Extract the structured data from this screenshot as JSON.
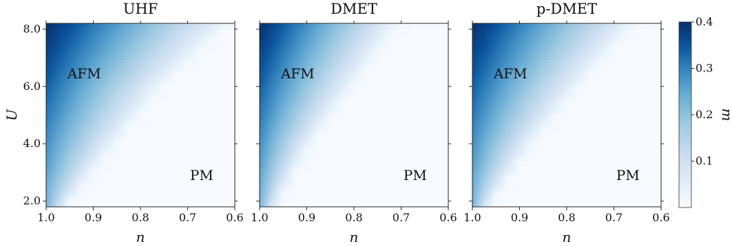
{
  "chart_data": [
    {
      "type": "heatmap",
      "title": "UHF",
      "xlabel": "n",
      "ylabel": "U",
      "xlim": [
        1.0,
        0.6
      ],
      "ylim": [
        1.8,
        8.2
      ],
      "xticks": [
        "1.0",
        "0.9",
        "0.8",
        "0.7",
        "0.6"
      ],
      "yticks": [
        "2.0",
        "4.0",
        "6.0",
        "8.0"
      ],
      "value": "m",
      "phase_boundary": [
        {
          "U": 2.0,
          "n": 0.95
        },
        {
          "U": 4.0,
          "n": 0.85
        },
        {
          "U": 6.0,
          "n": 0.75
        },
        {
          "U": 8.0,
          "n": 0.62
        }
      ],
      "max_m": 0.4,
      "annotations": [
        "AFM",
        "PM"
      ]
    },
    {
      "type": "heatmap",
      "title": "DMET",
      "xlabel": "n",
      "ylabel": "",
      "xlim": [
        1.0,
        0.6
      ],
      "ylim": [
        1.8,
        8.2
      ],
      "xticks": [
        "1.0",
        "0.9",
        "0.8",
        "0.7",
        "0.6"
      ],
      "yticks": [],
      "value": "m",
      "phase_boundary": [
        {
          "U": 2.0,
          "n": 0.96
        },
        {
          "U": 4.0,
          "n": 0.89
        },
        {
          "U": 6.0,
          "n": 0.8
        },
        {
          "U": 8.0,
          "n": 0.71
        }
      ],
      "max_m": 0.4,
      "annotations": [
        "AFM",
        "PM"
      ]
    },
    {
      "type": "heatmap",
      "title": "p-DMET",
      "xlabel": "n",
      "ylabel": "",
      "xlim": [
        1.0,
        0.6
      ],
      "ylim": [
        1.8,
        8.2
      ],
      "xticks": [
        "1.0",
        "0.9",
        "0.8",
        "0.7",
        "0.6"
      ],
      "yticks": [],
      "value": "m",
      "phase_boundary": [
        {
          "U": 2.0,
          "n": 0.96
        },
        {
          "U": 4.0,
          "n": 0.87
        },
        {
          "U": 6.0,
          "n": 0.77
        },
        {
          "U": 8.0,
          "n": 0.66
        }
      ],
      "max_m": 0.4,
      "annotations": [
        "AFM",
        "PM"
      ]
    }
  ],
  "colorbar": {
    "label": "m",
    "range": [
      0.0,
      0.4
    ],
    "ticks": [
      "0.1",
      "0.2",
      "0.3",
      "0.4"
    ],
    "tick_values": [
      0.1,
      0.2,
      0.3,
      0.4
    ],
    "colormap": "Blues",
    "color_low": "#f7fbff",
    "color_high": "#08306b"
  }
}
